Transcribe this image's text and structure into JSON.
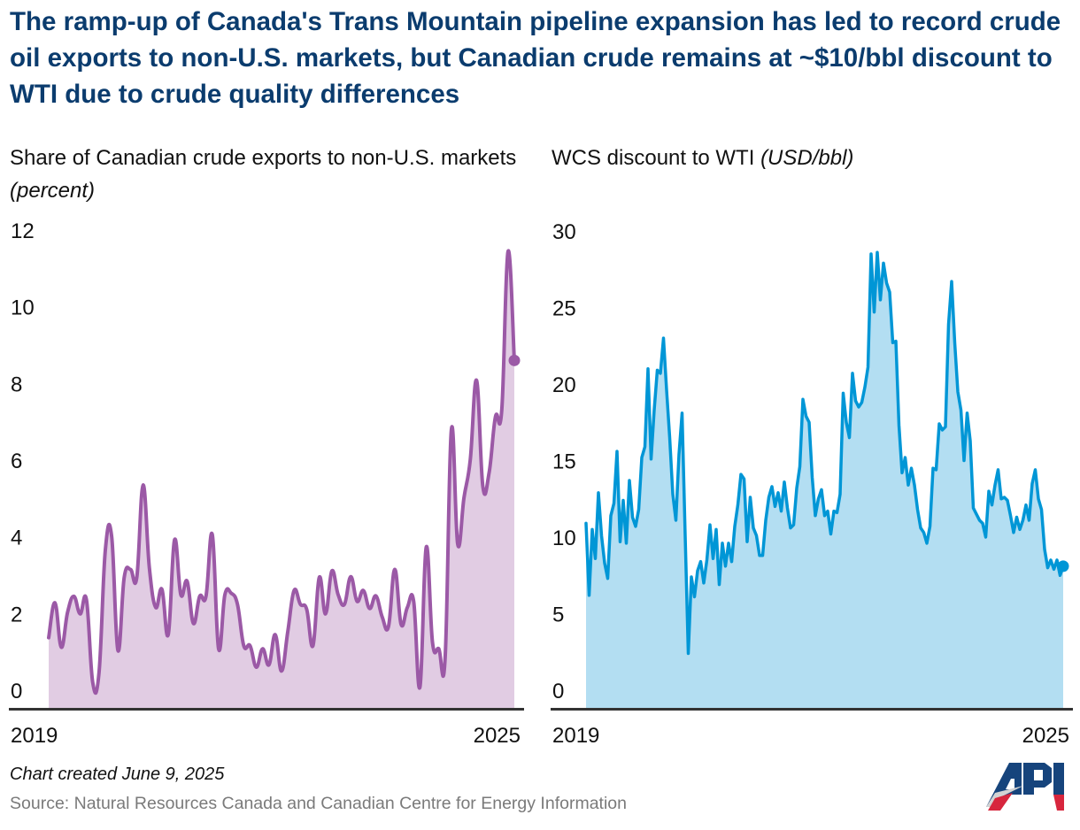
{
  "title": "The ramp-up of Canada's Trans Mountain pipeline expansion has led to record crude oil exports to non-U.S. markets, but Canadian crude remains at ~$10/bbl discount to WTI due to crude quality differences",
  "footer": {
    "created": "Chart created June 9, 2025",
    "source": "Source: Natural Resources Canada and Canadian Centre for Energy Information",
    "logo_text": "API"
  },
  "colors": {
    "title": "#0b3c6e",
    "left_line": "#9b59a6",
    "left_fill": "#e1cce3",
    "right_line": "#0096d6",
    "right_fill": "#b3def2",
    "axis": "#333333"
  },
  "chart_data": [
    {
      "type": "area",
      "title": "Share of Canadian crude exports to non-U.S. markets",
      "title_unit": "(percent)",
      "x_ticks": [
        "2019",
        "2025"
      ],
      "y_ticks": [
        0,
        2,
        4,
        6,
        8,
        10,
        12
      ],
      "ylim": [
        0,
        12
      ],
      "grid": false,
      "end_marker": true,
      "values": [
        1.37,
        2.28,
        1.12,
        2.03,
        2.45,
        1.99,
        2.36,
        0.2,
        0.46,
        3.65,
        4.02,
        1.04,
        2.94,
        3.15,
        2.94,
        5.35,
        3.19,
        2.16,
        2.63,
        1.45,
        3.92,
        2.49,
        2.84,
        1.74,
        2.45,
        2.45,
        4.06,
        1.08,
        2.49,
        2.53,
        2.24,
        1.16,
        1.16,
        0.6,
        1.08,
        0.66,
        1.45,
        0.5,
        1.53,
        2.6,
        2.24,
        2.11,
        1.16,
        2.94,
        1.99,
        3.11,
        2.49,
        2.24,
        2.96,
        2.32,
        2.6,
        2.13,
        2.46,
        1.91,
        1.66,
        3.15,
        1.72,
        2.16,
        2.32,
        0.08,
        3.73,
        1.24,
        1.08,
        0.83,
        6.8,
        3.81,
        5.02,
        6.01,
        8.08,
        5.31,
        5.68,
        7.13,
        7.3,
        11.44,
        8.6
      ]
    },
    {
      "type": "area",
      "title": "WCS discount to WTI",
      "title_unit": "(USD/bbl)",
      "x_ticks": [
        "2019",
        "2025"
      ],
      "y_ticks": [
        0,
        5,
        10,
        15,
        20,
        25,
        30
      ],
      "ylim": [
        0,
        30
      ],
      "grid": false,
      "end_marker": true,
      "values": [
        10.9,
        6.2,
        10.5,
        8.6,
        12.9,
        10.1,
        8.3,
        7.3,
        11.4,
        12.2,
        15.6,
        9.7,
        12.4,
        9.6,
        13.7,
        11.3,
        10.7,
        11.8,
        15.2,
        15.9,
        21.0,
        15.1,
        18.3,
        20.9,
        20.7,
        23.0,
        19.6,
        16.5,
        12.8,
        11.1,
        15.4,
        18.1,
        10.1,
        2.4,
        7.4,
        6.1,
        7.8,
        8.4,
        7.0,
        8.5,
        10.8,
        8.6,
        10.5,
        6.9,
        9.6,
        8.1,
        9.6,
        8.4,
        10.7,
        12.1,
        14.1,
        13.8,
        9.7,
        12.6,
        10.6,
        10.1,
        8.8,
        8.8,
        11.1,
        12.6,
        13.3,
        12.0,
        12.9,
        11.7,
        13.6,
        11.9,
        10.6,
        10.8,
        13.2,
        14.6,
        19.0,
        17.9,
        17.5,
        13.9,
        11.4,
        12.5,
        13.1,
        11.4,
        11.7,
        10.2,
        11.7,
        11.6,
        12.8,
        19.4,
        17.5,
        16.5,
        20.7,
        18.9,
        18.5,
        18.8,
        19.8,
        21.1,
        28.5,
        24.7,
        28.6,
        25.5,
        27.9,
        26.6,
        26.0,
        22.7,
        22.8,
        17.3,
        14.2,
        15.2,
        13.4,
        14.5,
        13.4,
        11.8,
        10.6,
        10.3,
        9.6,
        10.7,
        14.5,
        14.4,
        17.4,
        17.0,
        17.2,
        23.9,
        26.7,
        22.7,
        19.5,
        18.3,
        15.0,
        18.1,
        16.3,
        11.9,
        11.5,
        11.1,
        10.9,
        10.0,
        13.0,
        12.1,
        13.4,
        14.4,
        12.5,
        12.6,
        12.4,
        11.4,
        10.3,
        11.3,
        10.5,
        11.1,
        12.1,
        11.1,
        13.5,
        14.4,
        12.5,
        11.8,
        9.2,
        8.0,
        8.5,
        7.9,
        8.5,
        7.5,
        8.1
      ]
    }
  ]
}
